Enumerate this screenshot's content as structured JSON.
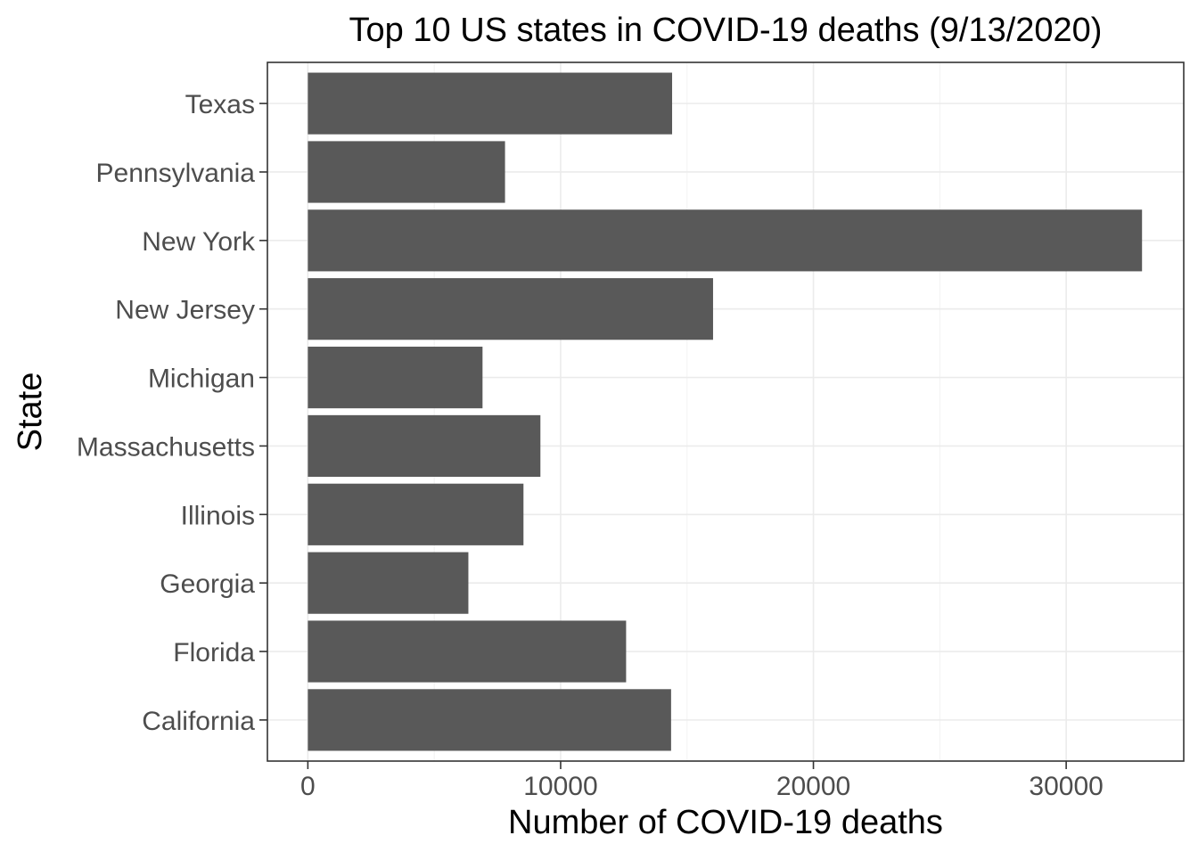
{
  "chart_data": {
    "type": "bar",
    "orientation": "horizontal",
    "title": "Top 10 US states in COVID-19 deaths (9/13/2020)",
    "xlabel": "Number of COVID-19 deaths",
    "ylabel": "State",
    "categories": [
      "California",
      "Florida",
      "Georgia",
      "Illinois",
      "Massachusetts",
      "Michigan",
      "New Jersey",
      "New York",
      "Pennsylvania",
      "Texas"
    ],
    "values": [
      14370,
      12590,
      6350,
      8530,
      9200,
      6910,
      16030,
      33000,
      7800,
      14410
    ],
    "xlim": [
      -1600,
      34650
    ],
    "xticks": [
      0,
      10000,
      20000,
      30000
    ],
    "xtick_labels": [
      "0",
      "10000",
      "20000",
      "30000"
    ],
    "grid": true,
    "bar_color": "#595959",
    "theme": "bw"
  }
}
